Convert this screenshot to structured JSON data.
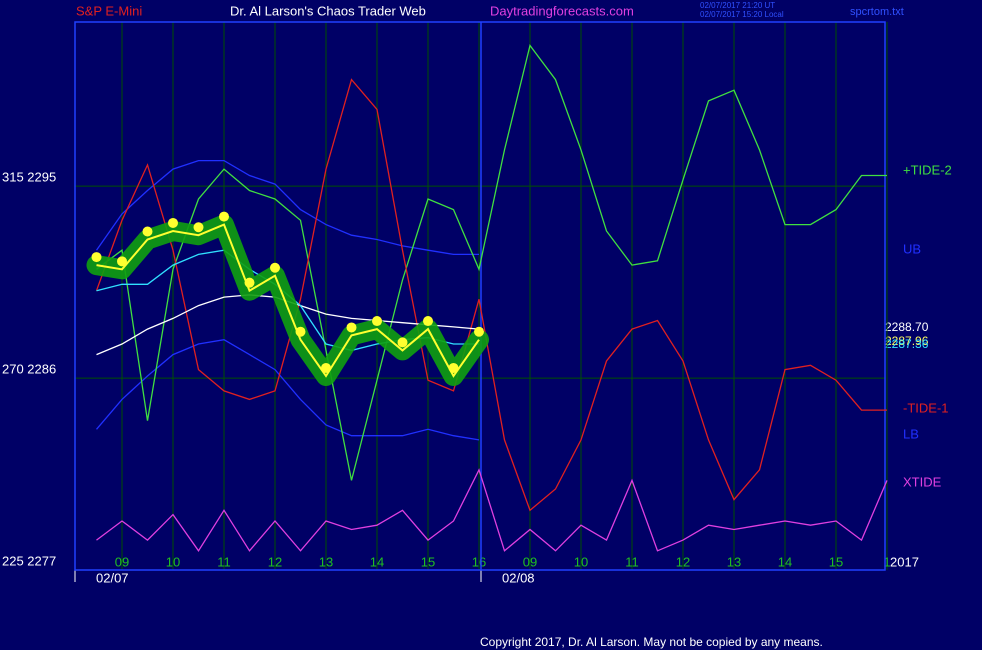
{
  "chart_data": {
    "type": "line",
    "symbol": "S&P E-Mini",
    "title": "Dr. Al Larson's Chaos Trader Web",
    "website": "Daytradingforecasts.com",
    "timestamps": [
      "02/07/2017 21:20 UT",
      "02/07/2017 15:20 Local"
    ],
    "file": "spcrtom.txt",
    "copyright": "Copyright 2017, Dr. Al Larson. May not be copied by any means.",
    "year": "2017",
    "dates": [
      "02/07",
      "02/08"
    ],
    "annotations": [
      "2288.70",
      "2287.96",
      "2287.36"
    ],
    "categories": [
      null,
      "09",
      null,
      "10",
      null,
      "11",
      null,
      "12",
      null,
      "13",
      null,
      "14",
      null,
      "15",
      null,
      "16",
      null,
      "09",
      null,
      "10",
      null,
      "11",
      null,
      "12",
      null,
      "13",
      null,
      "14",
      null,
      "15",
      null,
      "1"
    ],
    "ylim": [
      2277,
      2302.7
    ],
    "yticks": [
      {
        "value": 2277,
        "label": "225 2277"
      },
      {
        "value": 2286,
        "label": "270 2286"
      },
      {
        "value": 2295,
        "label": "315 2295"
      }
    ],
    "grid": true,
    "series": [
      {
        "name": "UB",
        "color": "#2030ff",
        "values": [
          2292.0,
          2293.7,
          2294.8,
          2295.8,
          2296.2,
          2296.2,
          2295.5,
          2295.1,
          2293.9,
          2293.2,
          2292.7,
          2292.5,
          2292.2,
          2292.0,
          2291.8,
          2291.8,
          null,
          null,
          null,
          null,
          null,
          null,
          null,
          null,
          null,
          null,
          null,
          null,
          null,
          null,
          null,
          null
        ]
      },
      {
        "name": "LB",
        "color": "#2030ff",
        "values": [
          2283.6,
          2285.0,
          2286.1,
          2287.1,
          2287.6,
          2287.8,
          2287.1,
          2286.4,
          2285.0,
          2283.8,
          2283.3,
          2283.3,
          2283.3,
          2283.6,
          2283.3,
          2283.1,
          null,
          null,
          null,
          null,
          null,
          null,
          null,
          null,
          null,
          null,
          null,
          null,
          null,
          null,
          null,
          null
        ]
      },
      {
        "name": "+TIDE-2",
        "color": "#40e040",
        "values": [
          2291.1,
          2292.0,
          2284.0,
          2291.1,
          2294.4,
          2295.8,
          2294.8,
          2294.4,
          2293.4,
          2287.3,
          2281.2,
          2285.9,
          2290.6,
          2294.4,
          2293.9,
          2291.1,
          2296.7,
          2301.6,
          2300.0,
          2296.7,
          2292.9,
          2291.3,
          2291.5,
          2295.3,
          2299.0,
          2299.5,
          2296.7,
          2293.2,
          2293.2,
          2293.9,
          2295.5,
          2295.5
        ]
      },
      {
        "name": "-TIDE-1",
        "color": "#e02020",
        "values": [
          2290.1,
          2293.4,
          2296.0,
          2292.0,
          2286.4,
          2285.4,
          2285.0,
          2285.4,
          2289.7,
          2295.8,
          2300.0,
          2298.6,
          2292.0,
          2285.9,
          2285.4,
          2289.7,
          2283.1,
          2279.8,
          2280.8,
          2283.1,
          2286.8,
          2288.3,
          2288.7,
          2286.8,
          2283.1,
          2280.3,
          2281.7,
          2286.4,
          2286.6,
          2285.9,
          2284.5,
          2284.5
        ]
      },
      {
        "name": "XTIDE",
        "color": "#e040e0",
        "values": [
          2278.4,
          2279.3,
          2278.4,
          2279.6,
          2277.9,
          2279.8,
          2277.9,
          2279.3,
          2277.9,
          2279.3,
          2278.9,
          2279.1,
          2279.8,
          2278.4,
          2279.3,
          2281.7,
          2277.9,
          2278.9,
          2277.9,
          2279.1,
          2278.4,
          2281.2,
          2277.9,
          2278.4,
          2279.1,
          2278.9,
          2279.1,
          2279.3,
          2279.1,
          2279.3,
          2278.4,
          2281.2
        ]
      },
      {
        "color": "#ffffff",
        "values": [
          2287.1,
          2287.6,
          2288.3,
          2288.8,
          2289.4,
          2289.8,
          2289.9,
          2289.8,
          2289.4,
          2289.0,
          2288.8,
          2288.7,
          2288.6,
          2288.5,
          2288.4,
          2288.3,
          null,
          null,
          null,
          null,
          null,
          null,
          null,
          null,
          null,
          null,
          null,
          null,
          null,
          null,
          null,
          null
        ]
      },
      {
        "color": "#30e0ff",
        "values": [
          2290.1,
          2290.4,
          2290.4,
          2291.3,
          2291.8,
          2292.0,
          2291.1,
          2290.4,
          2289.4,
          2287.6,
          2287.3,
          2287.6,
          2287.8,
          2287.9,
          2287.6,
          2287.6,
          null,
          null,
          null,
          null,
          null,
          null,
          null,
          null,
          null,
          null,
          null,
          null,
          null,
          null,
          null,
          null
        ]
      },
      {
        "color": "#ffff30",
        "values": [
          2291.3,
          2291.1,
          2292.5,
          2292.9,
          2292.7,
          2293.2,
          2290.1,
          2290.8,
          2287.8,
          2286.1,
          2288.0,
          2288.3,
          2287.3,
          2288.3,
          2286.1,
          2287.8,
          null,
          null,
          null,
          null,
          null,
          null,
          null,
          null,
          null,
          null,
          null,
          null,
          null,
          null,
          null,
          null
        ]
      }
    ]
  }
}
